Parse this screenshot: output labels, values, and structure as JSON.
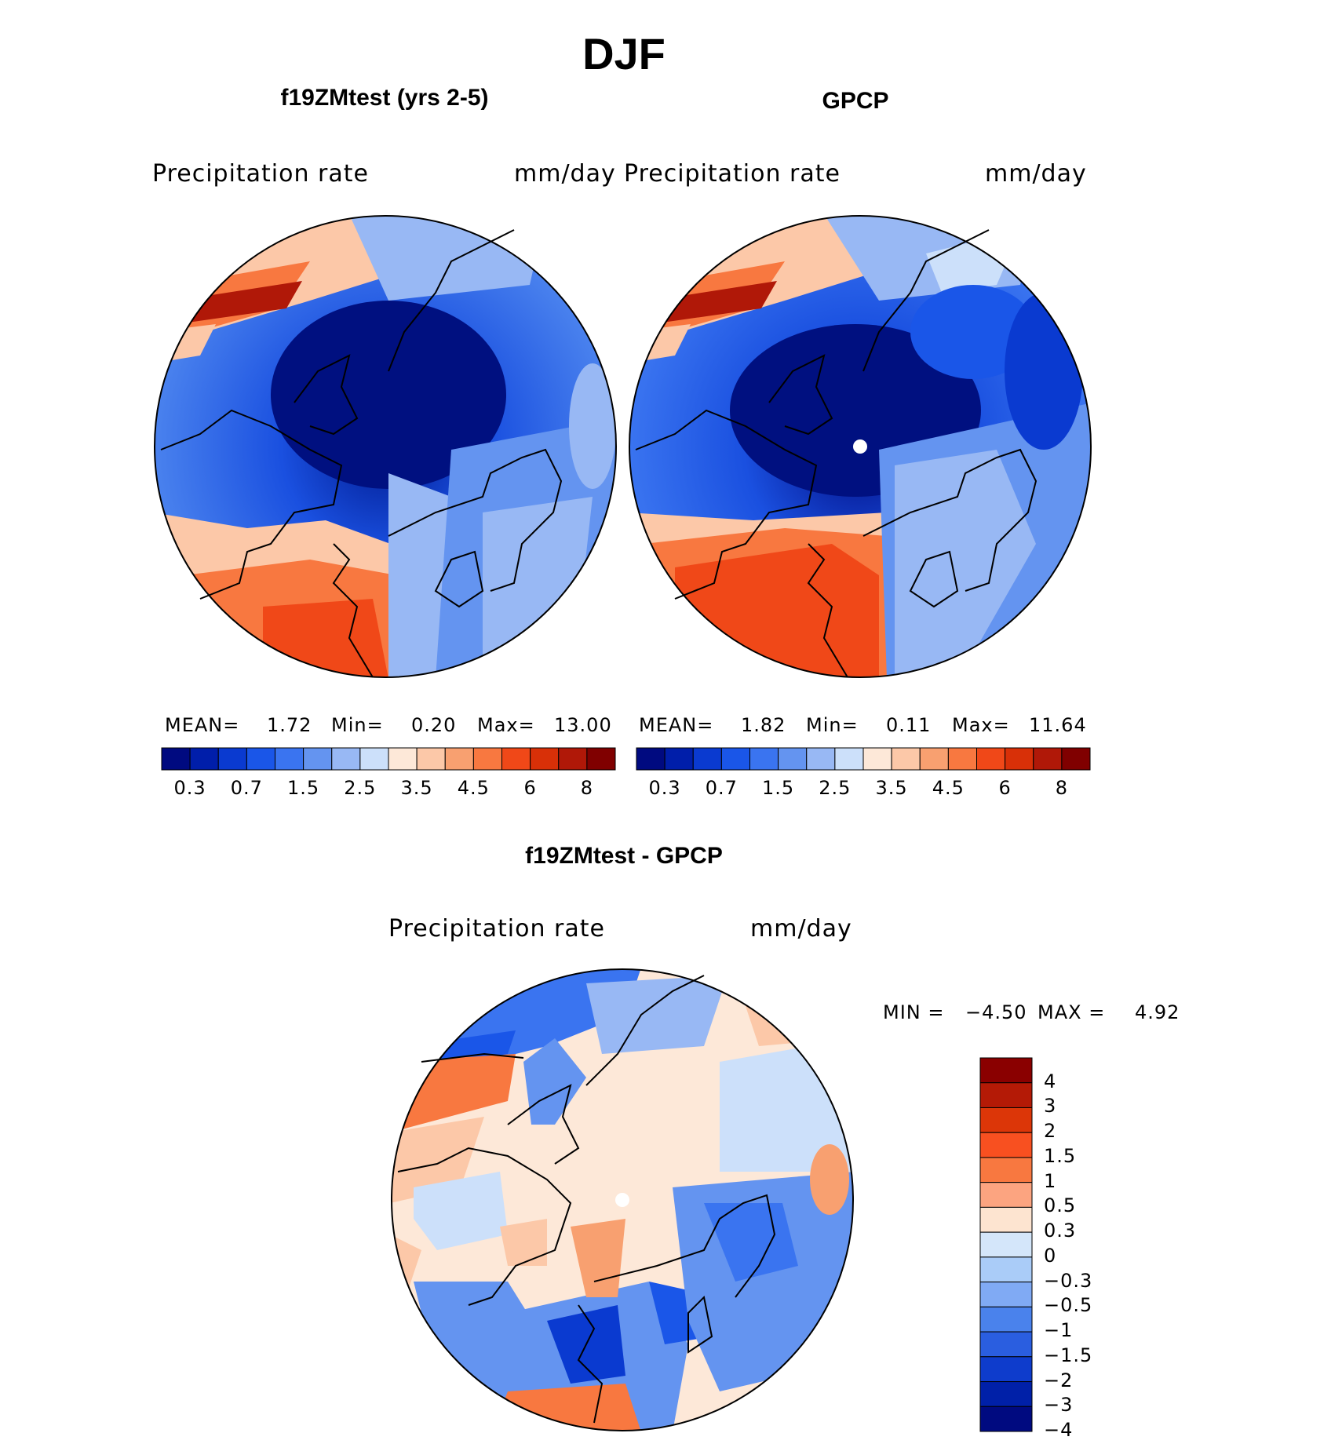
{
  "figure": {
    "title": "DJF"
  },
  "panels": [
    {
      "title": "f19ZMtest (yrs 2-5)",
      "variable": "Precipitation  rate",
      "units": "mm/day",
      "stats": {
        "mean_label": "MEAN=",
        "mean": "1.72",
        "min_label": "Min=",
        "min": "0.20",
        "max_label": "Max=",
        "max": "13.00"
      }
    },
    {
      "title": "GPCP",
      "variable": "Precipitation  rate",
      "units": "mm/day",
      "stats": {
        "mean_label": "MEAN=",
        "mean": "1.82",
        "min_label": "Min=",
        "min": "0.11",
        "max_label": "Max=",
        "max": "11.64"
      }
    },
    {
      "title": "f19ZMtest - GPCP",
      "variable": "Precipitation  rate",
      "units": "mm/day",
      "stats": {
        "min_label": "MIN =",
        "min": "−4.50",
        "max_label": "MAX =",
        "max": "4.92"
      }
    }
  ],
  "colorbar_abs": {
    "colors": [
      "#000a80",
      "#001eaa",
      "#0a3ad0",
      "#1a56e8",
      "#3a74f0",
      "#6494f0",
      "#98b8f4",
      "#cce0fa",
      "#fde8d8",
      "#fcc8a8",
      "#f8a070",
      "#f87840",
      "#f04818",
      "#d83008",
      "#b01808",
      "#800000"
    ],
    "tick_labels": [
      "0.3",
      "0.7",
      "1.5",
      "2.5",
      "3.5",
      "4.5",
      "6",
      "8"
    ]
  },
  "colorbar_diff": {
    "colors_top_to_bottom": [
      "#8a0000",
      "#b41a06",
      "#dc3608",
      "#f85020",
      "#f87840",
      "#fca480",
      "#fde4d0",
      "#d4e6fa",
      "#aaccf8",
      "#80aaf4",
      "#4a82ec",
      "#2a5ee0",
      "#0e3ccc",
      "#0020a8",
      "#000a80"
    ],
    "tick_labels": [
      "4",
      "3",
      "2",
      "1.5",
      "1",
      "0.5",
      "0.3",
      "0",
      "−0.3",
      "−0.5",
      "−1",
      "−1.5",
      "−2",
      "−3",
      "−4"
    ]
  }
}
